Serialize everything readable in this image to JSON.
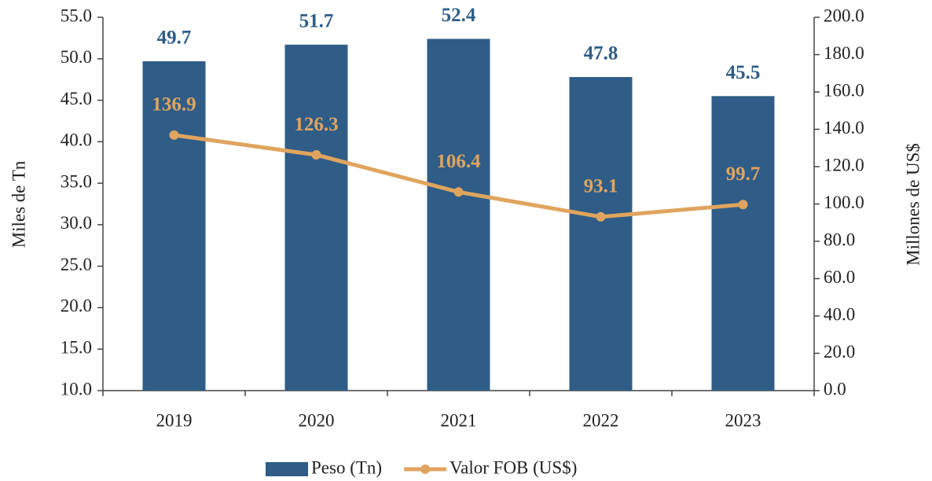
{
  "chart_data": {
    "type": "bar",
    "ylabel": "Miles de Tn",
    "y2label": "Millones de US$",
    "categories": [
      "2019",
      "2020",
      "2021",
      "2022",
      "2023"
    ],
    "series": [
      {
        "name": "Peso (Tn)",
        "type": "bar",
        "color": "#2f5d87",
        "values": [
          49.7,
          51.7,
          52.4,
          47.8,
          45.5
        ]
      },
      {
        "name": "Valor FOB (US$)",
        "type": "line",
        "axis": "y2",
        "color": "#e0a45e",
        "values": [
          136.9,
          126.3,
          106.4,
          93.1,
          99.7
        ]
      }
    ],
    "ylim": [
      10,
      55
    ],
    "yticks": [
      {
        "value": 10,
        "label": "10.0"
      },
      {
        "value": 15,
        "label": "15.0"
      },
      {
        "value": 20,
        "label": "20.0"
      },
      {
        "value": 25,
        "label": "25.0"
      },
      {
        "value": 30,
        "label": "30.0"
      },
      {
        "value": 35,
        "label": "35.0"
      },
      {
        "value": 40,
        "label": "40.0"
      },
      {
        "value": 45,
        "label": "45.0"
      },
      {
        "value": 50,
        "label": "50.0"
      },
      {
        "value": 55,
        "label": "55.0"
      }
    ],
    "y2lim": [
      0,
      200
    ],
    "y2ticks": [
      {
        "value": 0,
        "label": "0.0"
      },
      {
        "value": 20,
        "label": "20.0"
      },
      {
        "value": 40,
        "label": "40.0"
      },
      {
        "value": 60,
        "label": "60.0"
      },
      {
        "value": 80,
        "label": "80.0"
      },
      {
        "value": 100,
        "label": "100.0"
      },
      {
        "value": 120,
        "label": "120.0"
      },
      {
        "value": 140,
        "label": "140.0"
      },
      {
        "value": 160,
        "label": "160.0"
      },
      {
        "value": 180,
        "label": "180.0"
      },
      {
        "value": 200,
        "label": "200.0"
      }
    ],
    "legend": "bottom"
  }
}
